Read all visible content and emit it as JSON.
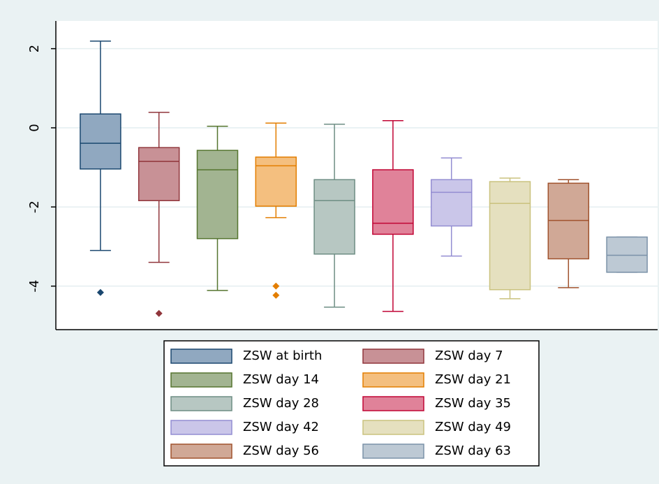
{
  "chart_data": {
    "type": "box",
    "ylim": [
      -5.1,
      2.7
    ],
    "yticks": [
      -4,
      -2,
      0,
      2
    ],
    "grid": true,
    "series": [
      {
        "name": "ZSW at birth",
        "color": "#1a476f",
        "fill": "#90a8c0",
        "min": -3.1,
        "q1": -1.04,
        "median": -0.39,
        "q3": 0.35,
        "max": 2.19,
        "outliers": [
          -4.16
        ]
      },
      {
        "name": "ZSW day 7",
        "color": "#90353b",
        "fill": "#c89196",
        "min": -3.4,
        "q1": -1.84,
        "median": -0.85,
        "q3": -0.5,
        "max": 0.39,
        "outliers": [
          -4.69
        ]
      },
      {
        "name": "ZSW day 14",
        "color": "#55752f",
        "fill": "#a2b491",
        "min": -4.11,
        "q1": -2.8,
        "median": -1.06,
        "q3": -0.57,
        "max": 0.04,
        "outliers": []
      },
      {
        "name": "ZSW day 21",
        "color": "#e37e00",
        "fill": "#f4bf7f",
        "min": -2.27,
        "q1": -1.98,
        "median": -0.96,
        "q3": -0.74,
        "max": 0.12,
        "outliers": [
          -4.0,
          -4.23
        ]
      },
      {
        "name": "ZSW day 28",
        "color": "#6e8e84",
        "fill": "#b7c7c2",
        "min": -4.53,
        "q1": -3.19,
        "median": -1.84,
        "q3": -1.31,
        "max": 0.09,
        "outliers": []
      },
      {
        "name": "ZSW day 35",
        "color": "#c10534",
        "fill": "#e08299",
        "min": -4.64,
        "q1": -2.69,
        "median": -2.41,
        "q3": -1.06,
        "max": 0.18,
        "outliers": []
      },
      {
        "name": "ZSW day 42",
        "color": "#938dd2",
        "fill": "#cac6e9",
        "min": -3.24,
        "q1": -2.48,
        "median": -1.63,
        "q3": -1.31,
        "max": -0.76,
        "outliers": []
      },
      {
        "name": "ZSW day 49",
        "color": "#cac27e",
        "fill": "#e5e0bf",
        "min": -4.32,
        "q1": -4.09,
        "median": -1.91,
        "q3": -1.36,
        "max": -1.27,
        "outliers": []
      },
      {
        "name": "ZSW day 56",
        "color": "#a0522d",
        "fill": "#d0a896",
        "min": -4.04,
        "q1": -3.31,
        "median": -2.34,
        "q3": -1.4,
        "max": -1.31,
        "outliers": []
      },
      {
        "name": "ZSW day 63",
        "color": "#7b92a8",
        "fill": "#bdc9d4",
        "min": -3.65,
        "q1": -3.65,
        "median": -3.22,
        "q3": -2.76,
        "max": -2.76,
        "outliers": []
      }
    ]
  }
}
